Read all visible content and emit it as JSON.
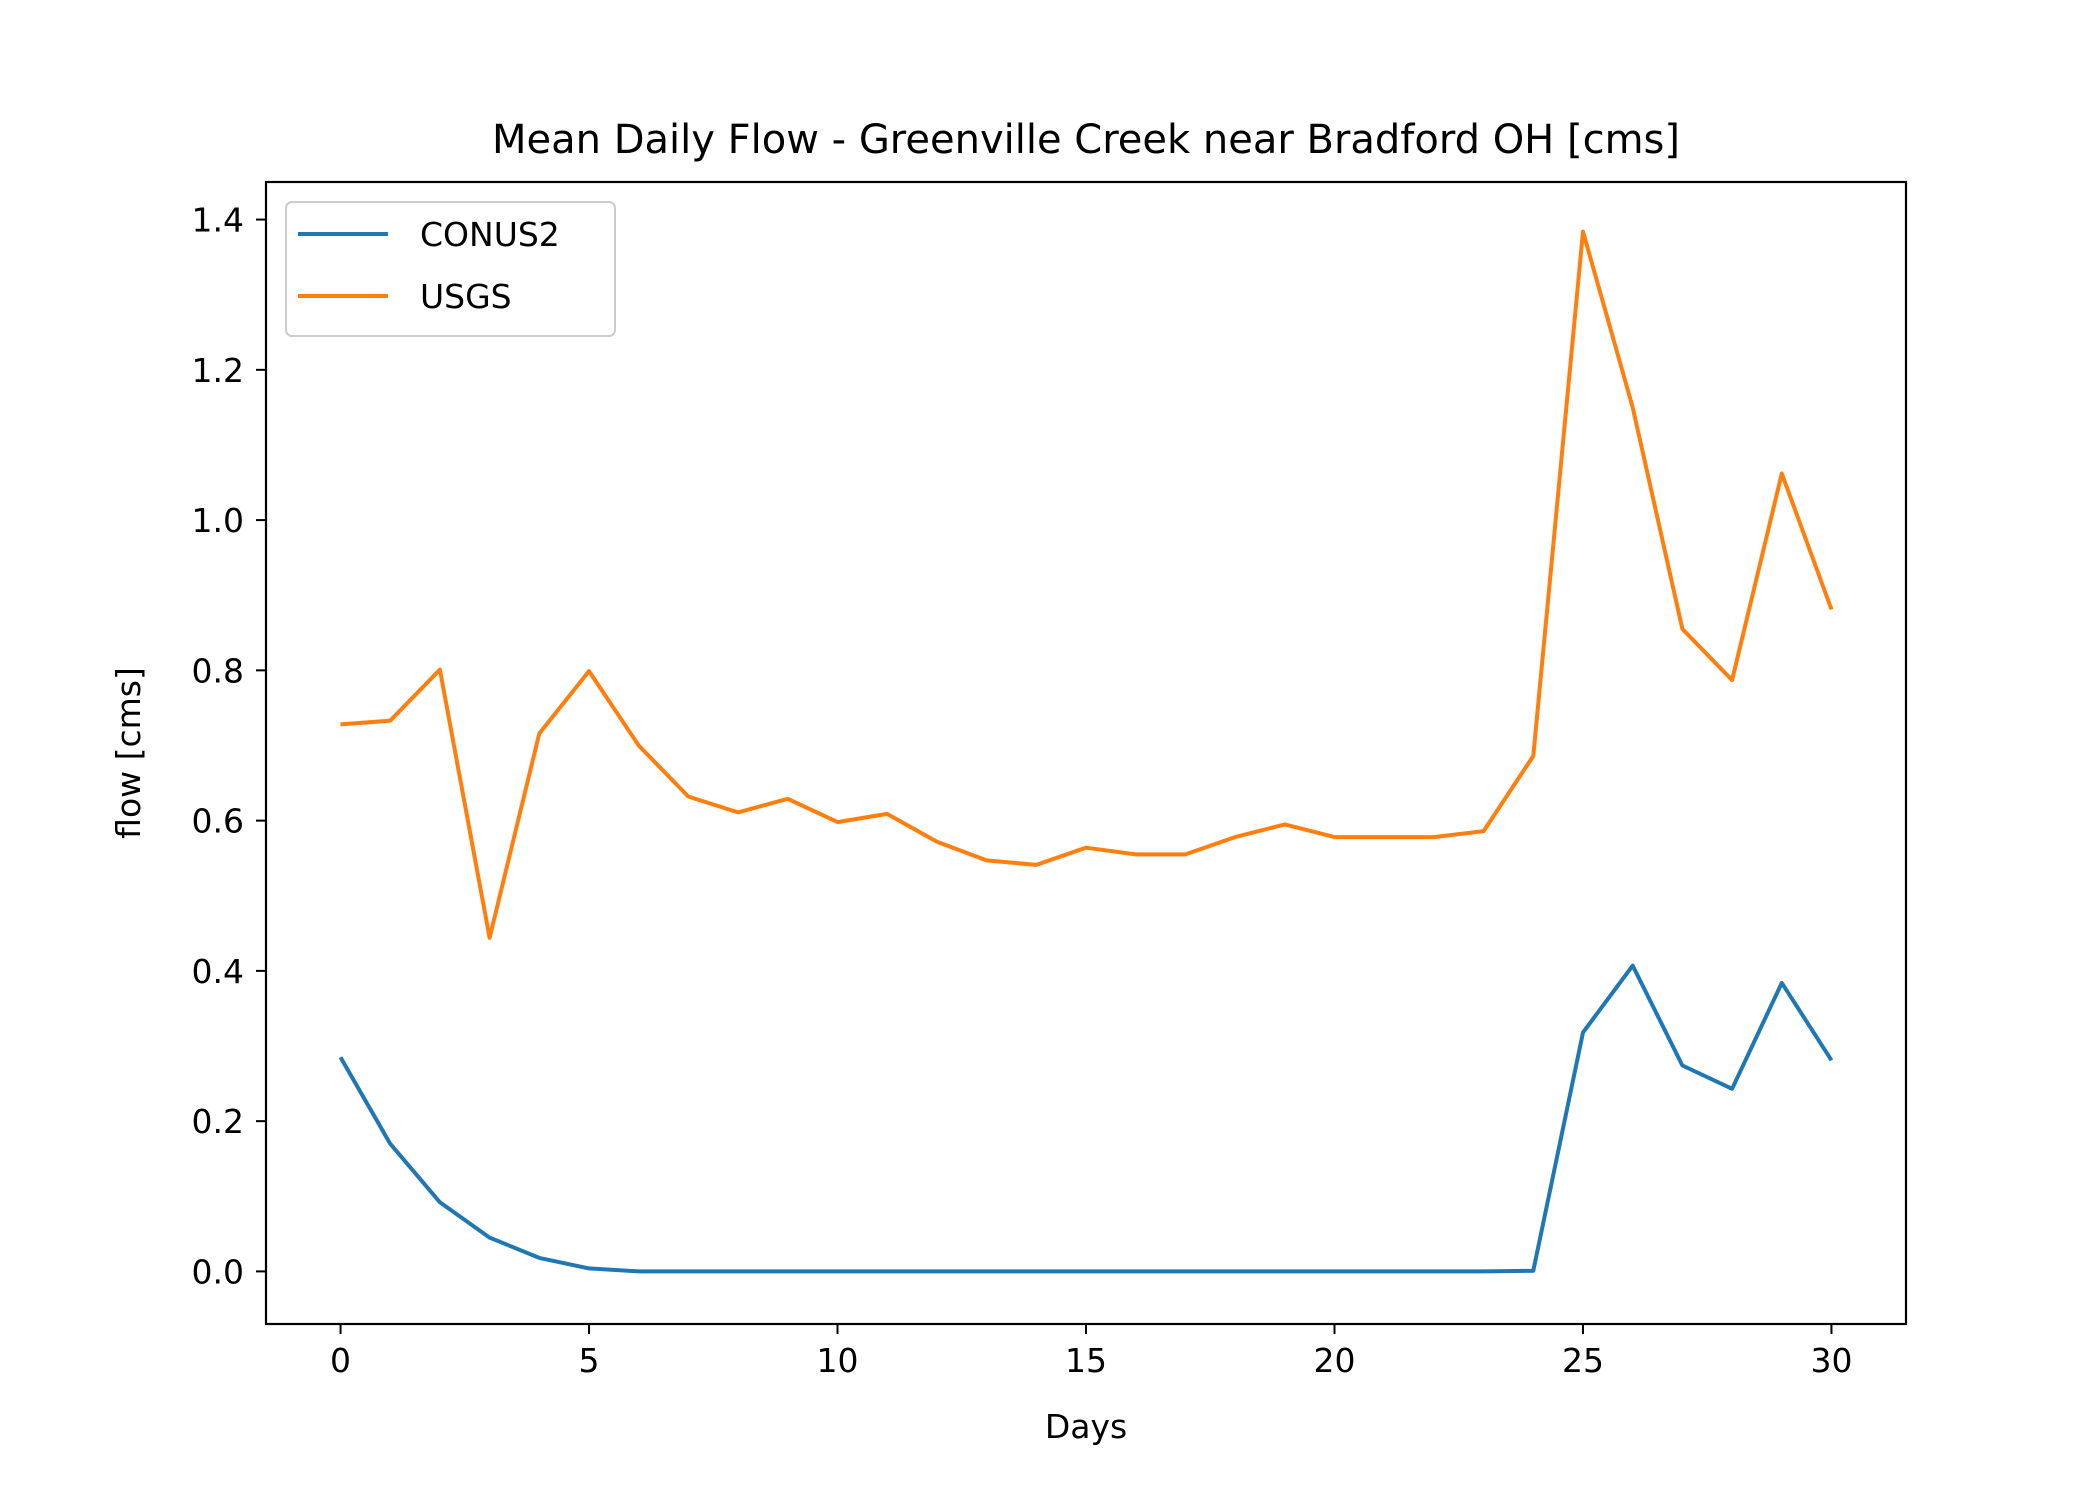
{
  "chart_data": {
    "type": "line",
    "title": "Mean Daily Flow - Greenville Creek near Bradford OH [cms]",
    "xlabel": "Days",
    "ylabel": "flow [cms]",
    "xlim": [
      -1.5,
      31.5
    ],
    "ylim": [
      -0.07,
      1.45
    ],
    "xticks": [
      0,
      5,
      10,
      15,
      20,
      25,
      30
    ],
    "xtick_labels": [
      "0",
      "5",
      "10",
      "15",
      "20",
      "25",
      "30"
    ],
    "yticks": [
      0.0,
      0.2,
      0.4,
      0.6,
      0.8,
      1.0,
      1.2,
      1.4
    ],
    "ytick_labels": [
      "0.0",
      "0.2",
      "0.4",
      "0.6",
      "0.8",
      "1.0",
      "1.2",
      "1.4"
    ],
    "grid": false,
    "legend_position": "upper-left",
    "x": [
      0,
      1,
      2,
      3,
      4,
      5,
      6,
      7,
      8,
      9,
      10,
      11,
      12,
      13,
      14,
      15,
      16,
      17,
      18,
      19,
      20,
      21,
      22,
      23,
      24,
      25,
      26,
      27,
      28,
      29,
      30
    ],
    "series": [
      {
        "name": "CONUS2",
        "color": "#1f77b4",
        "values": [
          0.285,
          0.17,
          0.092,
          0.045,
          0.018,
          0.004,
          0.0,
          0.0,
          0.0,
          0.0,
          0.0,
          0.0,
          0.0,
          0.0,
          0.0,
          0.0,
          0.0,
          0.0,
          0.0,
          0.0,
          0.0,
          0.0,
          0.0,
          0.0,
          0.001,
          0.318,
          0.407,
          0.274,
          0.243,
          0.384,
          0.281
        ]
      },
      {
        "name": "USGS",
        "color": "#ff7f0e",
        "values": [
          0.728,
          0.733,
          0.801,
          0.444,
          0.716,
          0.799,
          0.7,
          0.632,
          0.611,
          0.629,
          0.598,
          0.609,
          0.572,
          0.547,
          0.541,
          0.564,
          0.555,
          0.555,
          0.578,
          0.595,
          0.578,
          0.578,
          0.578,
          0.586,
          0.686,
          1.384,
          1.15,
          0.855,
          0.787,
          1.062,
          0.881
        ]
      }
    ]
  }
}
